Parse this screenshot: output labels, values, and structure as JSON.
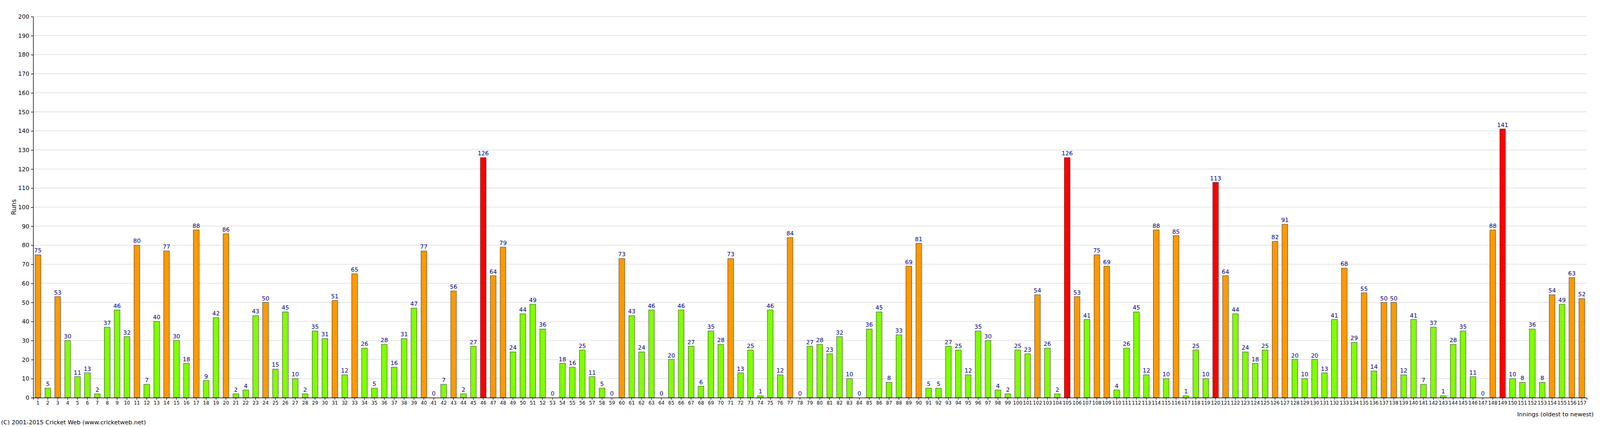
{
  "chart_data": {
    "type": "bar",
    "y_label": "Runs",
    "x_label": "Innings (oldest to newest)",
    "footer": "(C) 2001-2015 Cricket Web (www.cricketweb.net)",
    "categories": [
      "1",
      "2",
      "3",
      "4",
      "5",
      "6",
      "7",
      "8",
      "9",
      "10",
      "11",
      "12",
      "13",
      "14",
      "15",
      "16",
      "17",
      "18",
      "19",
      "20",
      "21",
      "22",
      "23",
      "24",
      "25",
      "26",
      "27",
      "28",
      "29",
      "30",
      "31",
      "32",
      "33",
      "34",
      "35",
      "36",
      "37",
      "38",
      "39",
      "40",
      "41",
      "42",
      "43",
      "44",
      "45",
      "46",
      "47",
      "48",
      "49",
      "50",
      "51",
      "52",
      "53",
      "54",
      "55",
      "56",
      "57",
      "58",
      "59",
      "60",
      "61",
      "62",
      "63",
      "64",
      "65",
      "66",
      "67",
      "68",
      "69",
      "70",
      "71",
      "72",
      "73",
      "74",
      "75",
      "76",
      "77",
      "78",
      "79",
      "80",
      "81",
      "82",
      "83",
      "84",
      "85",
      "86",
      "87",
      "88",
      "89",
      "90",
      "91",
      "92",
      "93",
      "94",
      "95",
      "96",
      "97",
      "98",
      "99",
      "100",
      "101",
      "102",
      "103",
      "104",
      "105",
      "106",
      "107",
      "108",
      "109",
      "110",
      "111",
      "112",
      "113",
      "114",
      "115",
      "116",
      "117",
      "118",
      "119",
      "120",
      "121",
      "122",
      "123",
      "124",
      "125",
      "126",
      "127",
      "128",
      "129",
      "130",
      "131",
      "132",
      "133",
      "134",
      "135",
      "136",
      "137",
      "138",
      "139",
      "140",
      "141",
      "142",
      "143",
      "144",
      "145",
      "146",
      "147",
      "148",
      "149",
      "150",
      "151",
      "152",
      "153",
      "154",
      "155",
      "156",
      "157"
    ],
    "values": [
      75,
      5,
      53,
      30,
      11,
      13,
      2,
      37,
      46,
      32,
      80,
      7,
      40,
      77,
      30,
      18,
      88,
      9,
      42,
      86,
      2,
      4,
      43,
      50,
      15,
      45,
      10,
      2,
      35,
      31,
      51,
      12,
      65,
      26,
      5,
      28,
      16,
      31,
      47,
      77,
      0,
      7,
      56,
      2,
      27,
      126,
      64,
      79,
      24,
      44,
      49,
      36,
      0,
      18,
      16,
      25,
      11,
      5,
      0,
      73,
      43,
      24,
      46,
      0,
      20,
      46,
      27,
      6,
      35,
      28,
      73,
      13,
      25,
      1,
      46,
      12,
      84,
      0,
      27,
      28,
      23,
      32,
      10,
      0,
      36,
      45,
      8,
      33,
      69,
      81,
      5,
      5,
      27,
      25,
      12,
      35,
      30,
      4,
      2,
      25,
      23,
      54,
      26,
      2,
      126,
      53,
      41,
      75,
      69,
      4,
      26,
      45,
      12,
      88,
      10,
      85,
      1,
      25,
      10,
      113,
      64,
      44,
      24,
      18,
      25,
      82,
      91,
      20,
      10,
      20,
      13,
      41,
      68,
      29,
      55,
      14,
      50,
      50,
      12,
      41,
      7,
      37,
      1,
      28,
      35,
      11,
      0,
      88,
      141,
      10,
      8,
      36,
      8,
      54,
      49,
      63,
      52
    ],
    "colors": [
      "#ff9900",
      "#80ff00",
      "#ff9900",
      "#80ff00",
      "#80ff00",
      "#80ff00",
      "#80ff00",
      "#80ff00",
      "#80ff00",
      "#80ff00",
      "#ff9900",
      "#80ff00",
      "#80ff00",
      "#ff9900",
      "#80ff00",
      "#80ff00",
      "#ff9900",
      "#80ff00",
      "#80ff00",
      "#ff9900",
      "#80ff00",
      "#80ff00",
      "#80ff00",
      "#ff9900",
      "#80ff00",
      "#80ff00",
      "#80ff00",
      "#80ff00",
      "#80ff00",
      "#80ff00",
      "#ff9900",
      "#80ff00",
      "#ff9900",
      "#80ff00",
      "#80ff00",
      "#80ff00",
      "#80ff00",
      "#80ff00",
      "#80ff00",
      "#ff9900",
      "#80ff00",
      "#80ff00",
      "#ff9900",
      "#80ff00",
      "#80ff00",
      "#ff0000",
      "#ff9900",
      "#ff9900",
      "#80ff00",
      "#80ff00",
      "#80ff00",
      "#80ff00",
      "#80ff00",
      "#80ff00",
      "#80ff00",
      "#80ff00",
      "#80ff00",
      "#80ff00",
      "#80ff00",
      "#ff9900",
      "#80ff00",
      "#80ff00",
      "#80ff00",
      "#80ff00",
      "#80ff00",
      "#80ff00",
      "#80ff00",
      "#80ff00",
      "#80ff00",
      "#80ff00",
      "#ff9900",
      "#80ff00",
      "#80ff00",
      "#80ff00",
      "#80ff00",
      "#80ff00",
      "#ff9900",
      "#80ff00",
      "#80ff00",
      "#80ff00",
      "#80ff00",
      "#80ff00",
      "#80ff00",
      "#80ff00",
      "#80ff00",
      "#80ff00",
      "#80ff00",
      "#80ff00",
      "#ff9900",
      "#ff9900",
      "#80ff00",
      "#80ff00",
      "#80ff00",
      "#80ff00",
      "#80ff00",
      "#80ff00",
      "#80ff00",
      "#80ff00",
      "#80ff00",
      "#80ff00",
      "#80ff00",
      "#ff9900",
      "#80ff00",
      "#80ff00",
      "#ff0000",
      "#ff9900",
      "#80ff00",
      "#ff9900",
      "#ff9900",
      "#80ff00",
      "#80ff00",
      "#80ff00",
      "#80ff00",
      "#ff9900",
      "#80ff00",
      "#ff9900",
      "#80ff00",
      "#80ff00",
      "#80ff00",
      "#ff0000",
      "#ff9900",
      "#80ff00",
      "#80ff00",
      "#80ff00",
      "#80ff00",
      "#ff9900",
      "#ff9900",
      "#80ff00",
      "#80ff00",
      "#80ff00",
      "#80ff00",
      "#80ff00",
      "#ff9900",
      "#80ff00",
      "#ff9900",
      "#80ff00",
      "#ff9900",
      "#ff9900",
      "#80ff00",
      "#80ff00",
      "#80ff00",
      "#80ff00",
      "#80ff00",
      "#80ff00",
      "#80ff00",
      "#80ff00",
      "#80ff00",
      "#ff9900",
      "#ff0000",
      "#80ff00",
      "#80ff00",
      "#80ff00",
      "#80ff00",
      "#ff9900",
      "#80ff00",
      "#ff9900",
      "#ff9900"
    ],
    "ylim": [
      0,
      200
    ],
    "yticks": [
      0,
      10,
      20,
      30,
      40,
      50,
      60,
      70,
      80,
      90,
      100,
      110,
      120,
      130,
      140,
      150,
      160,
      170,
      180,
      190,
      200
    ],
    "grid": true,
    "data_labels": true
  }
}
